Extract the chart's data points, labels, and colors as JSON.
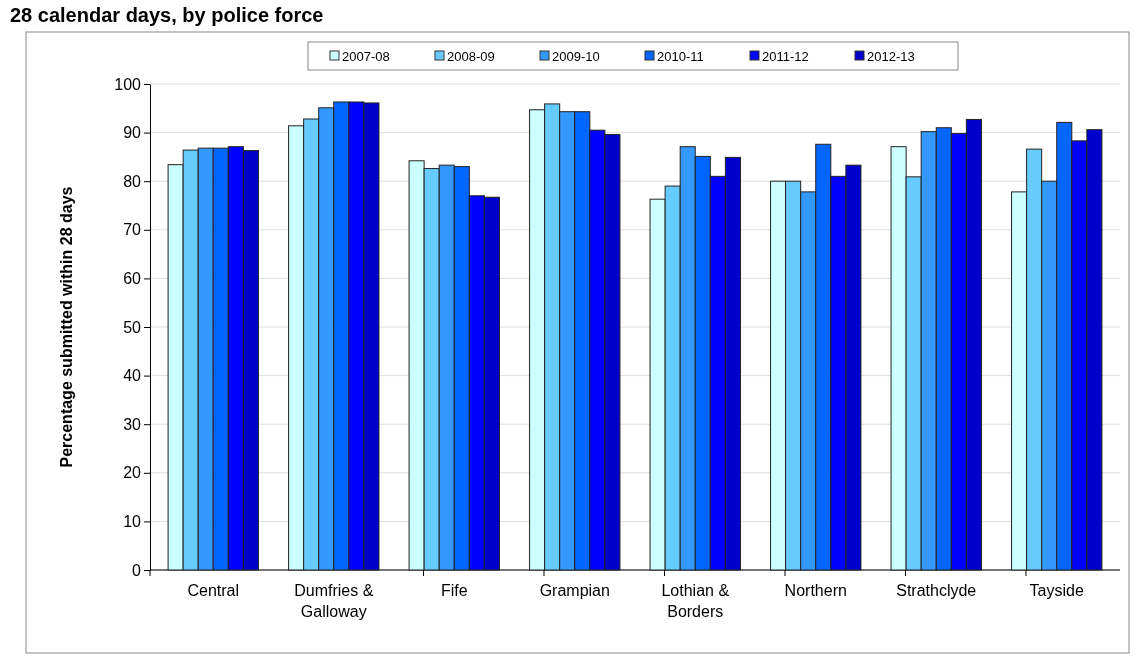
{
  "chart_data": {
    "type": "bar",
    "title": "28 calendar days, by police force",
    "ylabel": "Percentage submitted within 28 days",
    "categories": [
      "Central",
      "Dumfries & Galloway",
      "Fife",
      "Grampian",
      "Lothian & Borders",
      "Northern",
      "Strathclyde",
      "Tayside"
    ],
    "series": [
      {
        "name": "2007-08",
        "color": "#ccffff",
        "values": [
          83.4,
          91.4,
          84.2,
          94.7,
          76.3,
          80.0,
          87.1,
          77.8
        ]
      },
      {
        "name": "2008-09",
        "color": "#66ccff",
        "values": [
          86.4,
          92.8,
          82.6,
          95.9,
          79.0,
          80.0,
          80.9,
          86.6
        ]
      },
      {
        "name": "2009-10",
        "color": "#3399ff",
        "values": [
          86.8,
          95.1,
          83.3,
          94.3,
          87.1,
          77.8,
          90.2,
          80.0
        ]
      },
      {
        "name": "2010-11",
        "color": "#0066ff",
        "values": [
          86.8,
          96.3,
          83.0,
          94.3,
          85.1,
          87.6,
          91.0,
          92.1
        ]
      },
      {
        "name": "2011-12",
        "color": "#0000ff",
        "values": [
          87.1,
          96.3,
          77.0,
          90.5,
          81.0,
          81.0,
          89.8,
          88.3
        ]
      },
      {
        "name": "2012-13",
        "color": "#0000cc",
        "values": [
          86.3,
          96.1,
          76.7,
          89.6,
          84.9,
          83.3,
          92.7,
          90.6
        ]
      }
    ],
    "ylim": [
      0,
      100
    ],
    "yticks": [
      0,
      10,
      20,
      30,
      40,
      50,
      60,
      70,
      80,
      90,
      100
    ],
    "grid": "y",
    "legend": "top"
  }
}
